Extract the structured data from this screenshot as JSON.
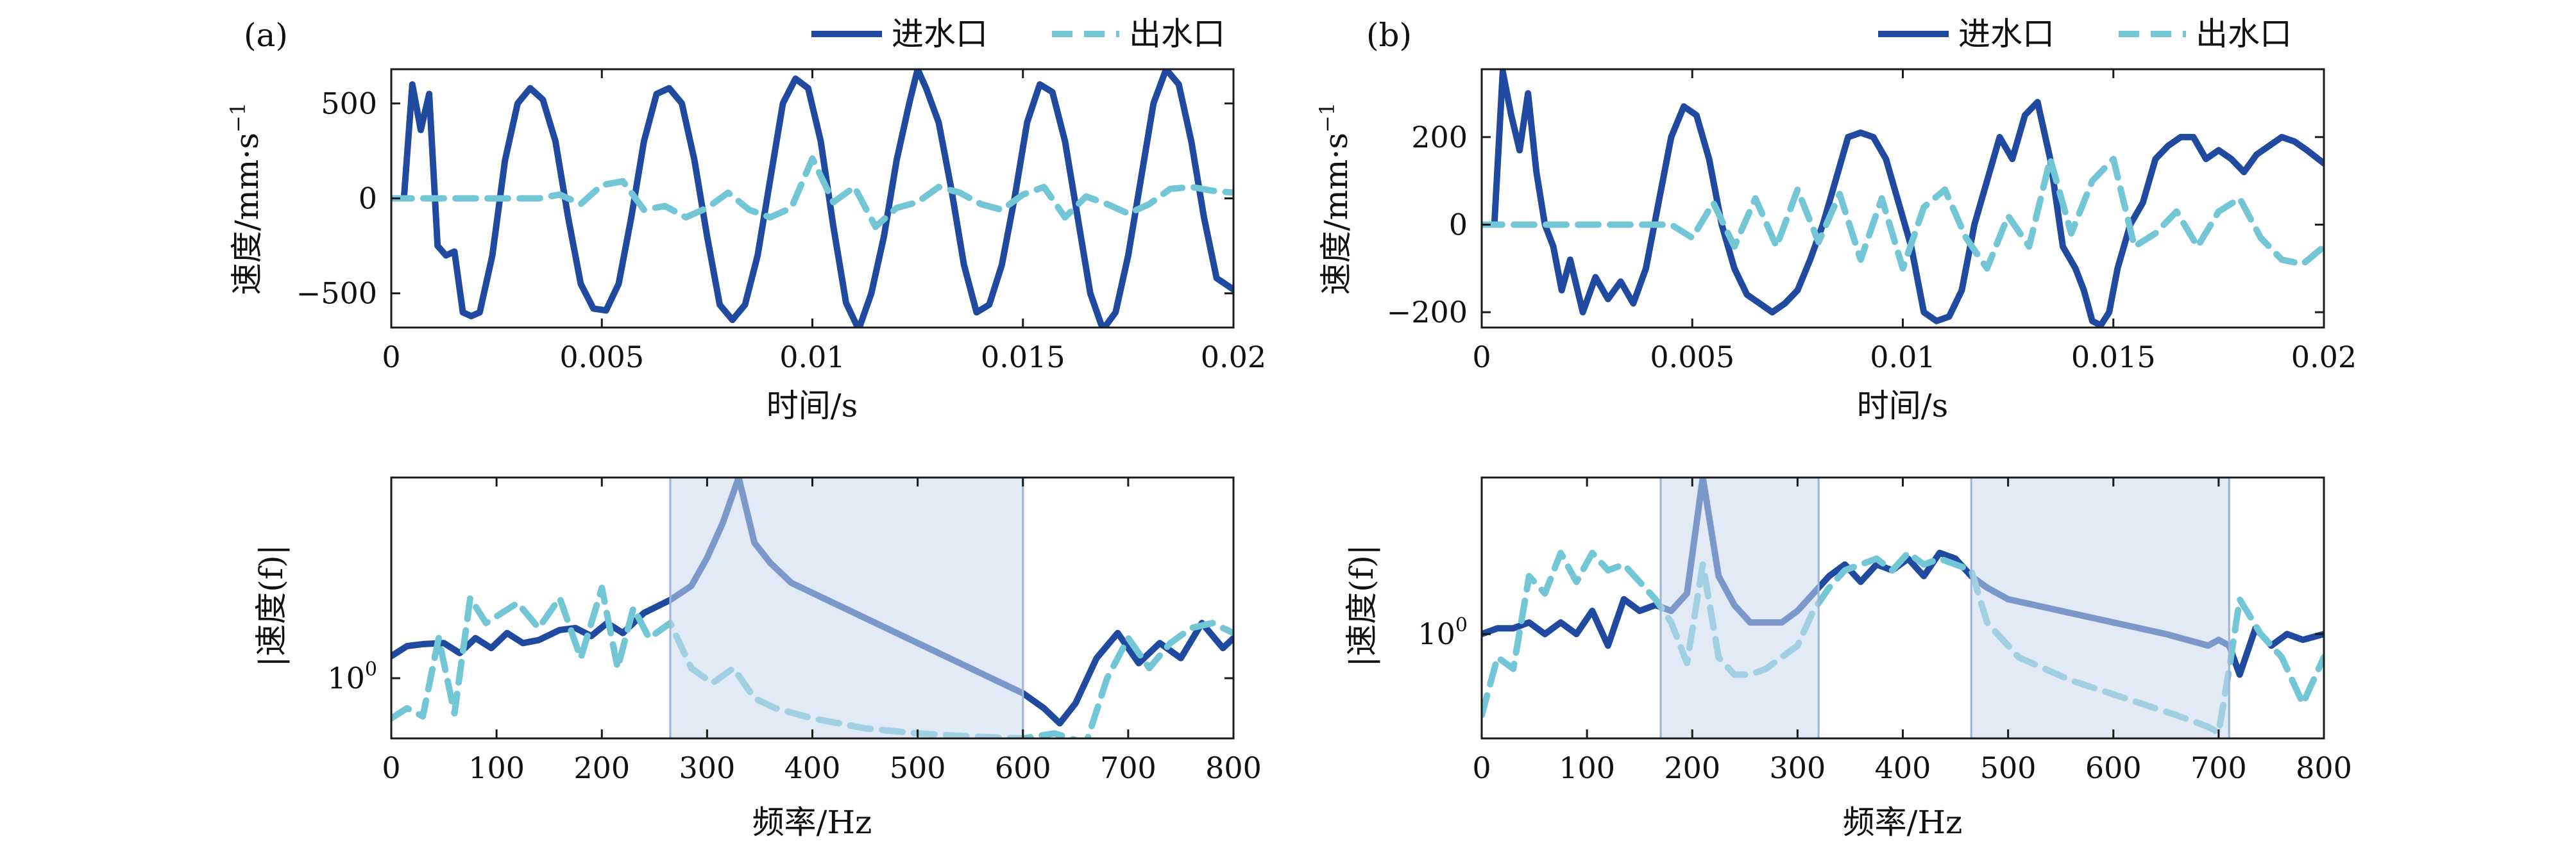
{
  "colors": {
    "inlet": "#1f4aa0",
    "outlet": "#72c6d6",
    "band_fill": "#c9d8ec",
    "band_edge": "#9db4d6"
  },
  "legend": {
    "inlet": "进水口",
    "outlet": "出水口"
  },
  "chart_data": [
    {
      "id": "a-time",
      "panel_label": "(a)",
      "type": "line",
      "title": "",
      "xlabel": "时间/s",
      "ylabel_main": "速度/mm·s",
      "ylabel_sup": "−1",
      "xlim": [
        0,
        0.02
      ],
      "ylim": [
        -680,
        680
      ],
      "xticks": [
        0,
        0.005,
        0.01,
        0.015,
        0.02
      ],
      "xtick_labels": [
        "0",
        "0.005",
        "0.01",
        "0.015",
        "0.02"
      ],
      "yticks": [
        -500,
        0,
        500
      ],
      "ytick_labels": [
        "−500",
        "0",
        "500"
      ],
      "series": [
        {
          "name": "进水口",
          "x": [
            0.0003,
            0.0005,
            0.0007,
            0.0009,
            0.0011,
            0.0013,
            0.0015,
            0.0017,
            0.0019,
            0.0021,
            0.0024,
            0.0027,
            0.003,
            0.0033,
            0.0036,
            0.0039,
            0.0042,
            0.0045,
            0.0048,
            0.0051,
            0.0054,
            0.0057,
            0.006,
            0.0063,
            0.0066,
            0.0069,
            0.0072,
            0.0075,
            0.0078,
            0.0081,
            0.0084,
            0.0087,
            0.009,
            0.0093,
            0.0096,
            0.0099,
            0.0102,
            0.0105,
            0.0108,
            0.0111,
            0.0114,
            0.0117,
            0.012,
            0.0123,
            0.0125,
            0.0127,
            0.013,
            0.0133,
            0.0136,
            0.0139,
            0.0142,
            0.0145,
            0.0148,
            0.0151,
            0.0154,
            0.0157,
            0.016,
            0.0163,
            0.0166,
            0.0169,
            0.0172,
            0.0175,
            0.0178,
            0.0181,
            0.0184,
            0.0187,
            0.019,
            0.0193,
            0.0196,
            0.02
          ],
          "y": [
            0,
            600,
            360,
            550,
            -250,
            -300,
            -280,
            -600,
            -620,
            -600,
            -300,
            200,
            500,
            580,
            520,
            300,
            -100,
            -450,
            -580,
            -590,
            -450,
            -100,
            300,
            550,
            580,
            500,
            200,
            -200,
            -560,
            -640,
            -560,
            -300,
            100,
            500,
            630,
            580,
            300,
            -150,
            -550,
            -690,
            -500,
            -200,
            200,
            500,
            680,
            580,
            400,
            50,
            -350,
            -600,
            -560,
            -350,
            0,
            400,
            600,
            560,
            300,
            -100,
            -500,
            -690,
            -600,
            -300,
            100,
            500,
            680,
            600,
            300,
            -100,
            -420,
            -480
          ]
        },
        {
          "name": "出水口",
          "x": [
            0,
            0.002,
            0.0035,
            0.004,
            0.0045,
            0.005,
            0.0055,
            0.006,
            0.0065,
            0.007,
            0.0075,
            0.008,
            0.0085,
            0.009,
            0.0095,
            0.01,
            0.0105,
            0.011,
            0.0115,
            0.012,
            0.0125,
            0.013,
            0.0135,
            0.014,
            0.0145,
            0.015,
            0.0155,
            0.016,
            0.0165,
            0.017,
            0.0175,
            0.018,
            0.0185,
            0.019,
            0.0195,
            0.02
          ],
          "y": [
            0,
            0,
            0,
            20,
            -30,
            70,
            90,
            -60,
            -40,
            -100,
            -50,
            30,
            -60,
            -100,
            -50,
            210,
            -20,
            60,
            -150,
            -50,
            -20,
            60,
            30,
            -30,
            -60,
            20,
            60,
            -100,
            10,
            -30,
            -80,
            -30,
            50,
            60,
            40,
            30
          ]
        }
      ]
    },
    {
      "id": "a-freq",
      "type": "line",
      "yscale": "log",
      "xlabel": "频率/Hz",
      "ylabel": "|速度(f)|",
      "xlim": [
        0,
        800
      ],
      "yaxis_range_decades": [
        -0.6,
        2.0
      ],
      "xticks": [
        0,
        100,
        200,
        300,
        400,
        500,
        600,
        700,
        800
      ],
      "xtick_labels": [
        "0",
        "100",
        "200",
        "300",
        "400",
        "500",
        "600",
        "700",
        "800"
      ],
      "ytick_decade": 0,
      "ytick_base": "10",
      "ytick_exp": "0",
      "shaded_bands": [
        [
          265,
          600
        ]
      ],
      "series": [
        {
          "name": "进水口",
          "x": [
            0,
            15,
            30,
            50,
            65,
            80,
            95,
            110,
            125,
            140,
            160,
            175,
            190,
            205,
            220,
            240,
            265,
            285,
            300,
            315,
            330,
            345,
            360,
            380,
            400,
            440,
            480,
            520,
            560,
            600,
            620,
            635,
            650,
            670,
            690,
            710,
            730,
            750,
            770,
            790,
            800
          ],
          "y_log10": [
            0.22,
            0.32,
            0.34,
            0.35,
            0.25,
            0.4,
            0.3,
            0.45,
            0.35,
            0.38,
            0.48,
            0.5,
            0.42,
            0.55,
            0.45,
            0.65,
            0.78,
            0.92,
            1.2,
            1.55,
            2.0,
            1.35,
            1.15,
            0.95,
            0.85,
            0.65,
            0.45,
            0.25,
            0.05,
            -0.15,
            -0.3,
            -0.45,
            -0.25,
            0.2,
            0.45,
            0.15,
            0.35,
            0.2,
            0.55,
            0.3,
            0.4
          ]
        },
        {
          "name": "出水口",
          "x": [
            0,
            15,
            30,
            45,
            60,
            75,
            90,
            105,
            120,
            140,
            160,
            180,
            200,
            215,
            230,
            245,
            265,
            285,
            305,
            325,
            345,
            365,
            400,
            450,
            500,
            550,
            600,
            630,
            660,
            680,
            700,
            720,
            740,
            760,
            780,
            800
          ],
          "y_log10": [
            -0.4,
            -0.3,
            -0.38,
            0.4,
            -0.35,
            0.8,
            0.55,
            0.65,
            0.75,
            0.5,
            0.8,
            0.2,
            0.9,
            0.1,
            0.7,
            0.4,
            0.55,
            0.1,
            -0.05,
            0.1,
            -0.2,
            -0.3,
            -0.4,
            -0.5,
            -0.55,
            -0.58,
            -0.6,
            -0.55,
            -0.65,
            0.0,
            0.4,
            0.1,
            0.35,
            0.5,
            0.55,
            0.45
          ]
        }
      ]
    },
    {
      "id": "b-time",
      "panel_label": "(b)",
      "type": "line",
      "xlabel": "时间/s",
      "ylabel_main": "速度/mm·s",
      "ylabel_sup": "−1",
      "xlim": [
        0,
        0.02
      ],
      "ylim": [
        -235,
        355
      ],
      "xticks": [
        0,
        0.005,
        0.01,
        0.015,
        0.02
      ],
      "xtick_labels": [
        "0",
        "0.005",
        "0.01",
        "0.015",
        "0.02"
      ],
      "yticks": [
        -200,
        0,
        200
      ],
      "ytick_labels": [
        "−200",
        "0",
        "200"
      ],
      "series": [
        {
          "name": "进水口",
          "x": [
            0.0003,
            0.0005,
            0.0007,
            0.0009,
            0.0011,
            0.0013,
            0.0015,
            0.0017,
            0.0019,
            0.0021,
            0.0024,
            0.0027,
            0.003,
            0.0033,
            0.0036,
            0.0039,
            0.0042,
            0.0045,
            0.0048,
            0.0051,
            0.0054,
            0.0057,
            0.006,
            0.0063,
            0.0066,
            0.0069,
            0.0072,
            0.0075,
            0.0078,
            0.0081,
            0.0084,
            0.0087,
            0.009,
            0.0093,
            0.0096,
            0.0099,
            0.0102,
            0.0105,
            0.0108,
            0.0111,
            0.0114,
            0.0117,
            0.012,
            0.0123,
            0.0126,
            0.0129,
            0.0132,
            0.0135,
            0.0138,
            0.0141,
            0.0143,
            0.0145,
            0.0147,
            0.0149,
            0.0151,
            0.0154,
            0.0157,
            0.016,
            0.0163,
            0.0166,
            0.0169,
            0.0172,
            0.0175,
            0.0178,
            0.0181,
            0.0184,
            0.0187,
            0.019,
            0.0193,
            0.0196,
            0.02
          ],
          "y": [
            0,
            350,
            250,
            170,
            300,
            120,
            0,
            -50,
            -150,
            -80,
            -200,
            -120,
            -170,
            -130,
            -180,
            -100,
            50,
            200,
            270,
            250,
            150,
            0,
            -100,
            -160,
            -180,
            -200,
            -180,
            -150,
            -80,
            0,
            100,
            200,
            210,
            200,
            150,
            50,
            -50,
            -200,
            -220,
            -210,
            -150,
            0,
            100,
            200,
            150,
            250,
            280,
            150,
            -50,
            -100,
            -150,
            -220,
            -230,
            -200,
            -100,
            0,
            50,
            150,
            180,
            200,
            200,
            150,
            170,
            150,
            120,
            160,
            180,
            200,
            190,
            170,
            140
          ]
        },
        {
          "name": "出水口",
          "x": [
            0,
            0.001,
            0.002,
            0.003,
            0.004,
            0.0045,
            0.005,
            0.0055,
            0.006,
            0.0065,
            0.007,
            0.0075,
            0.008,
            0.0085,
            0.009,
            0.0095,
            0.01,
            0.0105,
            0.011,
            0.0115,
            0.012,
            0.0125,
            0.013,
            0.0135,
            0.014,
            0.0145,
            0.015,
            0.0155,
            0.016,
            0.0165,
            0.017,
            0.0175,
            0.018,
            0.0185,
            0.019,
            0.0195,
            0.02
          ],
          "y": [
            0,
            0,
            0,
            0,
            0,
            0,
            -30,
            50,
            -50,
            60,
            -50,
            80,
            -40,
            70,
            -80,
            60,
            -100,
            40,
            80,
            -30,
            -100,
            20,
            -50,
            150,
            -20,
            100,
            150,
            -50,
            -20,
            30,
            -50,
            30,
            60,
            -30,
            -80,
            -90,
            -50
          ]
        }
      ]
    },
    {
      "id": "b-freq",
      "type": "line",
      "yscale": "log",
      "xlabel": "频率/Hz",
      "ylabel": "|速度(f)|",
      "xlim": [
        0,
        800
      ],
      "yaxis_range_decades": [
        -0.9,
        1.35
      ],
      "xticks": [
        0,
        100,
        200,
        300,
        400,
        500,
        600,
        700,
        800
      ],
      "xtick_labels": [
        "0",
        "100",
        "200",
        "300",
        "400",
        "500",
        "600",
        "700",
        "800"
      ],
      "ytick_decade": 0,
      "ytick_base": "10",
      "ytick_exp": "0",
      "shaded_bands": [
        [
          170,
          320
        ],
        [
          465,
          710
        ]
      ],
      "series": [
        {
          "name": "进水口",
          "x": [
            0,
            15,
            30,
            45,
            60,
            75,
            90,
            105,
            120,
            135,
            150,
            165,
            180,
            195,
            210,
            225,
            240,
            255,
            270,
            285,
            300,
            315,
            330,
            345,
            360,
            375,
            390,
            405,
            420,
            435,
            450,
            465,
            480,
            500,
            550,
            600,
            650,
            690,
            700,
            710,
            720,
            735,
            750,
            765,
            780,
            800
          ],
          "y_log10": [
            0.0,
            0.05,
            0.05,
            0.1,
            0.0,
            0.1,
            0.0,
            0.2,
            -0.1,
            0.3,
            0.2,
            0.25,
            0.2,
            0.35,
            1.35,
            0.5,
            0.25,
            0.1,
            0.1,
            0.1,
            0.2,
            0.35,
            0.5,
            0.6,
            0.45,
            0.6,
            0.55,
            0.65,
            0.5,
            0.7,
            0.65,
            0.5,
            0.4,
            0.3,
            0.2,
            0.1,
            0.0,
            -0.1,
            -0.05,
            -0.1,
            -0.35,
            0.05,
            -0.1,
            0.0,
            -0.05,
            0.0
          ]
        },
        {
          "name": "出水口",
          "x": [
            0,
            15,
            30,
            45,
            60,
            75,
            90,
            105,
            120,
            135,
            150,
            165,
            180,
            195,
            210,
            225,
            240,
            255,
            270,
            285,
            300,
            315,
            330,
            345,
            360,
            375,
            390,
            405,
            420,
            435,
            450,
            465,
            480,
            510,
            560,
            610,
            660,
            690,
            700,
            710,
            720,
            740,
            760,
            780,
            800
          ],
          "y_log10": [
            -0.7,
            -0.2,
            -0.3,
            0.5,
            0.35,
            0.7,
            0.45,
            0.7,
            0.55,
            0.6,
            0.45,
            0.3,
            0.1,
            -0.25,
            0.6,
            -0.2,
            -0.35,
            -0.35,
            -0.3,
            -0.2,
            -0.1,
            0.2,
            0.4,
            0.55,
            0.6,
            0.65,
            0.55,
            0.7,
            0.6,
            0.65,
            0.6,
            0.55,
            0.1,
            -0.2,
            -0.4,
            -0.55,
            -0.7,
            -0.8,
            -0.85,
            -0.3,
            0.3,
            0.0,
            -0.2,
            -0.6,
            -0.2
          ]
        }
      ]
    }
  ]
}
